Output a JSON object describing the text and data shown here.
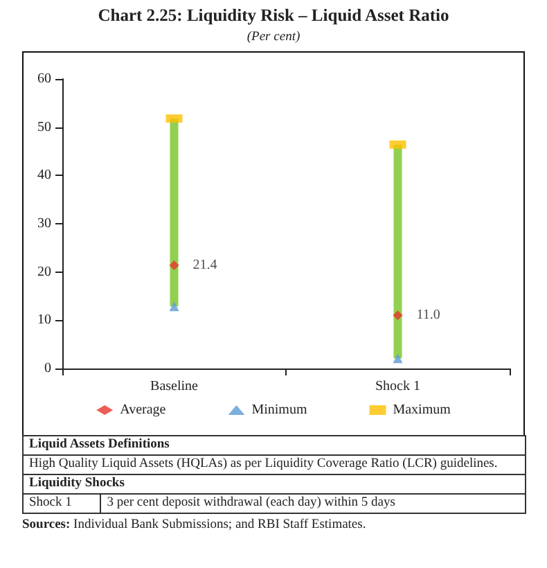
{
  "chart_data": {
    "type": "bar",
    "title": "Chart 2.25: Liquidity Risk – Liquid Asset Ratio",
    "subtitle": "(Per cent)",
    "categories": [
      "Baseline",
      "Shock 1"
    ],
    "series": [
      {
        "color": "#92d050",
        "base": [
          12.9,
          2.1
        ],
        "values": [
          38.9,
          44.3
        ]
      },
      {
        "type": "scatter",
        "name": "Average",
        "color": "#e8352a",
        "marker": "diamond",
        "x": [
          "Baseline",
          "Shock 1"
        ],
        "values": [
          21.4,
          11.0
        ],
        "value_labels": [
          "21.4",
          "11.0"
        ]
      },
      {
        "type": "scatter",
        "name": "Minimum",
        "color": "#5b9bd5",
        "marker": "triangle",
        "x": [
          "Baseline",
          "Shock 1"
        ],
        "values": [
          12.9,
          2.1
        ]
      },
      {
        "type": "scatter",
        "name": "Maximum",
        "color": "#ffc000",
        "marker": "square",
        "x": [
          "Baseline",
          "Shock 1"
        ],
        "values": [
          51.8,
          46.4
        ]
      }
    ],
    "ylim": [
      0,
      60
    ],
    "yticks": [
      0,
      10,
      20,
      30,
      40,
      50,
      60
    ],
    "grid": false,
    "legend": "bottom",
    "annotations": [
      "Liquid Assets Definitions",
      "High Quality Liquid Assets (HQLAs) as per Liquidity Coverage Ratio (LCR) guidelines.",
      "Liquidity Shocks",
      "Shock 1",
      "3  per cent deposit withdrawal (each day) within 5 days",
      "Sources: Individual Bank Submissions; and RBI Staff Estimates."
    ]
  }
}
